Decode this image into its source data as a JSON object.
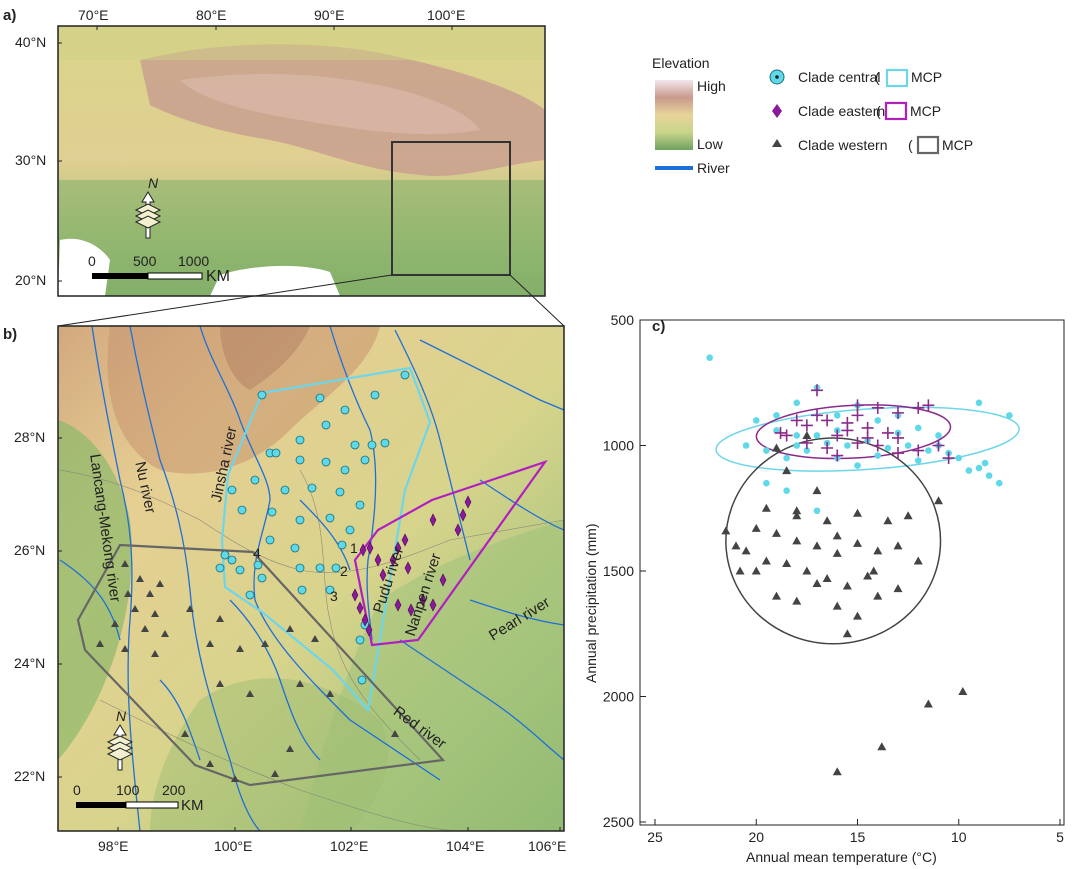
{
  "panel_a": {
    "letter": "a)",
    "lon_ticks": [
      "70°E",
      "80°E",
      "90°E",
      "100°E"
    ],
    "lat_ticks": [
      "40°N",
      "30°N",
      "20°N"
    ],
    "north": "N",
    "scale": {
      "ticks": [
        "0",
        "500",
        "1000"
      ],
      "unit": "KM"
    }
  },
  "panel_b": {
    "letter": "b)",
    "lon_ticks": [
      "98°E",
      "100°E",
      "102°E",
      "104°E",
      "106°E"
    ],
    "lat_ticks": [
      "28°N",
      "26°N",
      "24°N",
      "22°N"
    ],
    "north": "N",
    "scale": {
      "ticks": [
        "0",
        "100",
        "200"
      ],
      "unit": "KM"
    },
    "rivers": [
      "Lancang-Mekong river",
      "Jinsha river",
      "Nu river",
      "Pudu river",
      "Nanpen river",
      "Pearl river",
      "Red river"
    ],
    "site_numbers": [
      "1",
      "2",
      "3",
      "4"
    ]
  },
  "legend": {
    "elevation_title": "Elevation",
    "high": "High",
    "low": "Low",
    "river": "River",
    "clades": [
      {
        "label": "Clade central",
        "paren": "(",
        "mcp": "MCP",
        "color": "#5fd8e8"
      },
      {
        "label": "Clade eastern",
        "paren": "(",
        "mcp": "MCP",
        "color": "#a020a0"
      },
      {
        "label": "Clade western",
        "paren": "(",
        "mcp": "MCP",
        "color": "#555555"
      }
    ],
    "river_color": "#1f6fd8"
  },
  "panel_c": {
    "letter": "c)",
    "xlabel": "Annual mean temperature (°C)",
    "ylabel": "Annual precipitation (mm)"
  },
  "chart_data": {
    "type": "scatter",
    "xlim": [
      25,
      5
    ],
    "ylim": [
      500,
      2500
    ],
    "x_ticks": [
      25,
      20,
      15,
      10,
      5
    ],
    "y_ticks": [
      500,
      1000,
      1500,
      2000,
      2500
    ],
    "series": [
      {
        "name": "Clade central",
        "color": "#5fd8e8",
        "marker": "circle",
        "points": [
          [
            22.3,
            650
          ],
          [
            17,
            770
          ],
          [
            15,
            840
          ],
          [
            18,
            830
          ],
          [
            13,
            880
          ],
          [
            9,
            830
          ],
          [
            7.5,
            880
          ],
          [
            20,
            900
          ],
          [
            19,
            940
          ],
          [
            18,
            960
          ],
          [
            16.5,
            990
          ],
          [
            15.5,
            1000
          ],
          [
            14.5,
            980
          ],
          [
            13.5,
            1010
          ],
          [
            12.5,
            1000
          ],
          [
            11.5,
            1020
          ],
          [
            10.5,
            1030
          ],
          [
            10,
            1050
          ],
          [
            9,
            1090
          ],
          [
            8.5,
            1120
          ],
          [
            8,
            1150
          ],
          [
            18.5,
            1050
          ],
          [
            17.5,
            1020
          ],
          [
            16,
            1050
          ],
          [
            14,
            1040
          ],
          [
            12,
            1060
          ],
          [
            19.5,
            1150
          ],
          [
            18.5,
            1180
          ],
          [
            17,
            1260
          ],
          [
            20.5,
            1000
          ],
          [
            19,
            880
          ],
          [
            16,
            880
          ],
          [
            14,
            900
          ],
          [
            13,
            950
          ],
          [
            11,
            960
          ],
          [
            15,
            1080
          ],
          [
            17,
            960
          ],
          [
            18,
            1000
          ],
          [
            16,
            940
          ],
          [
            12,
            930
          ],
          [
            19.5,
            1020
          ],
          [
            11,
            1000
          ],
          [
            9.5,
            1100
          ],
          [
            8.7,
            1070
          ]
        ],
        "ellipse": {
          "cx": 14.5,
          "cy": 975,
          "rx": 7.5,
          "ry": 120
        }
      },
      {
        "name": "Clade eastern",
        "color": "#8a2a8a",
        "marker": "plus",
        "points": [
          [
            17,
            780
          ],
          [
            15,
            840
          ],
          [
            14,
            850
          ],
          [
            13,
            870
          ],
          [
            12,
            850
          ],
          [
            11.5,
            840
          ],
          [
            18,
            900
          ],
          [
            17.5,
            920
          ],
          [
            16.5,
            900
          ],
          [
            15.5,
            910
          ],
          [
            14.5,
            930
          ],
          [
            13.5,
            950
          ],
          [
            16,
            960
          ],
          [
            15,
            990
          ],
          [
            14,
            1000
          ],
          [
            13,
            1030
          ],
          [
            12,
            1020
          ],
          [
            11,
            1000
          ],
          [
            18.5,
            960
          ],
          [
            17.5,
            990
          ],
          [
            16.5,
            1010
          ],
          [
            15.5,
            940
          ],
          [
            14.5,
            970
          ],
          [
            16,
            1040
          ],
          [
            13,
            970
          ],
          [
            10.5,
            1050
          ],
          [
            17,
            880
          ],
          [
            18.8,
            950
          ],
          [
            15,
            880
          ]
        ],
        "ellipse": {
          "cx": 15.2,
          "cy": 945,
          "rx": 4.8,
          "ry": 105
        }
      },
      {
        "name": "Clade western",
        "color": "#444444",
        "marker": "triangle",
        "points": [
          [
            17.5,
            960
          ],
          [
            19,
            1010
          ],
          [
            18.5,
            1100
          ],
          [
            17,
            1180
          ],
          [
            19.5,
            1250
          ],
          [
            18,
            1280
          ],
          [
            16.5,
            1300
          ],
          [
            15,
            1270
          ],
          [
            13.5,
            1300
          ],
          [
            12.5,
            1280
          ],
          [
            11,
            1220
          ],
          [
            20,
            1330
          ],
          [
            19,
            1350
          ],
          [
            18,
            1380
          ],
          [
            17,
            1400
          ],
          [
            16,
            1360
          ],
          [
            15,
            1390
          ],
          [
            14,
            1420
          ],
          [
            13,
            1400
          ],
          [
            21.5,
            1340
          ],
          [
            20.5,
            1420
          ],
          [
            19.5,
            1460
          ],
          [
            18.5,
            1470
          ],
          [
            17.5,
            1500
          ],
          [
            16.5,
            1530
          ],
          [
            15.5,
            1560
          ],
          [
            14.5,
            1520
          ],
          [
            20,
            1500
          ],
          [
            19,
            1600
          ],
          [
            18,
            1620
          ],
          [
            16,
            1640
          ],
          [
            15,
            1680
          ],
          [
            14,
            1600
          ],
          [
            13,
            1570
          ],
          [
            17,
            1550
          ],
          [
            21,
            1400
          ],
          [
            15.5,
            1750
          ],
          [
            13.8,
            2200
          ],
          [
            11.5,
            2030
          ],
          [
            9.8,
            1980
          ],
          [
            16,
            2300
          ],
          [
            16,
            1430
          ],
          [
            14.2,
            1500
          ],
          [
            12,
            1460
          ],
          [
            18,
            1260
          ],
          [
            20.8,
            1500
          ]
        ],
        "ellipse": {
          "cx": 16.2,
          "cy": 1380,
          "rx": 5.3,
          "ry": 410
        }
      }
    ]
  }
}
